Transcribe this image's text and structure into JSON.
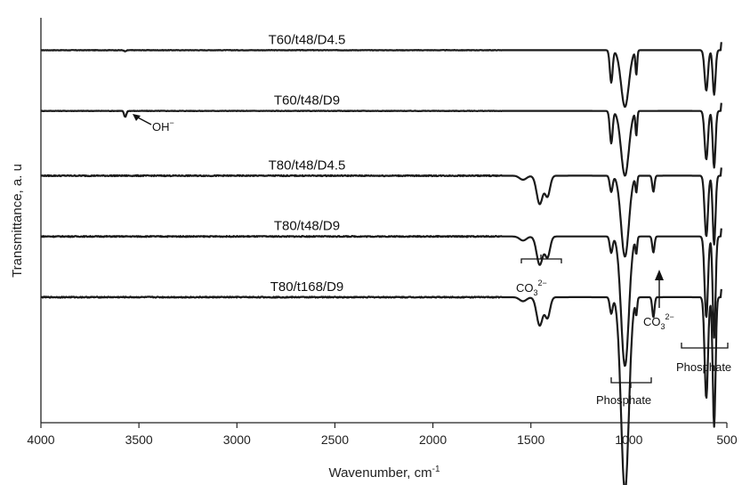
{
  "chart_data": {
    "type": "line",
    "xlabel": "Wavenumber, cm",
    "xlabel_sup": "-1",
    "ylabel": "Transmittance, a. u",
    "xlim": [
      4000,
      500
    ],
    "x_reversed": true,
    "y_ticks_shown": false,
    "grid": false,
    "x_ticks": [
      4000,
      3500,
      3000,
      2500,
      2000,
      1500,
      1000,
      500
    ],
    "x_tick_labels": [
      "4000",
      "3500",
      "3000",
      "2500",
      "2000",
      "1500",
      "1000",
      "500"
    ],
    "series": [
      {
        "name": "T60/t48/D4.5",
        "baseline": 0.92,
        "features": [
          [
            3570,
            0.003,
            8
          ],
          [
            1090,
            0.08,
            10
          ],
          [
            1020,
            0.14,
            28
          ],
          [
            962,
            0.06,
            6
          ],
          [
            605,
            0.1,
            12
          ],
          [
            565,
            0.11,
            10
          ]
        ]
      },
      {
        "name": "T60/t48/D9",
        "baseline": 0.77,
        "features": [
          [
            3570,
            0.015,
            8
          ],
          [
            1090,
            0.08,
            10
          ],
          [
            1020,
            0.16,
            28
          ],
          [
            962,
            0.06,
            6
          ],
          [
            605,
            0.12,
            12
          ],
          [
            565,
            0.14,
            10
          ]
        ]
      },
      {
        "name": "T80/t48/D4.5",
        "baseline": 0.61,
        "features": [
          [
            1540,
            0.01,
            25
          ],
          [
            1455,
            0.07,
            22
          ],
          [
            1415,
            0.05,
            18
          ],
          [
            1090,
            0.04,
            10
          ],
          [
            1020,
            0.2,
            28
          ],
          [
            962,
            0.04,
            6
          ],
          [
            875,
            0.04,
            8
          ],
          [
            605,
            0.15,
            12
          ],
          [
            565,
            0.17,
            10
          ]
        ]
      },
      {
        "name": "T80/t48/D9",
        "baseline": 0.46,
        "features": [
          [
            1540,
            0.01,
            25
          ],
          [
            1455,
            0.07,
            22
          ],
          [
            1415,
            0.05,
            18
          ],
          [
            1090,
            0.04,
            10
          ],
          [
            1020,
            0.32,
            28
          ],
          [
            962,
            0.04,
            6
          ],
          [
            875,
            0.04,
            8
          ],
          [
            605,
            0.2,
            12
          ],
          [
            565,
            0.25,
            10
          ]
        ]
      },
      {
        "name": "T80/t168/D9",
        "baseline": 0.31,
        "features": [
          [
            1540,
            0.01,
            25
          ],
          [
            1455,
            0.07,
            22
          ],
          [
            1415,
            0.05,
            18
          ],
          [
            1090,
            0.04,
            10
          ],
          [
            1020,
            0.48,
            28
          ],
          [
            962,
            0.04,
            6
          ],
          [
            875,
            0.05,
            8
          ],
          [
            605,
            0.25,
            12
          ],
          [
            565,
            0.32,
            10
          ]
        ]
      }
    ],
    "annotations": [
      {
        "id": "oh",
        "text": "OH",
        "sup": "−"
      },
      {
        "id": "co3-left",
        "text": "CO",
        "sub": "3",
        "sup": "2−"
      },
      {
        "id": "co3-right",
        "text": "CO",
        "sub": "3",
        "sup": "2−"
      },
      {
        "id": "phosphate-main",
        "text": "Phosphate"
      },
      {
        "id": "phosphate-low",
        "text": "Phosphate"
      }
    ]
  }
}
